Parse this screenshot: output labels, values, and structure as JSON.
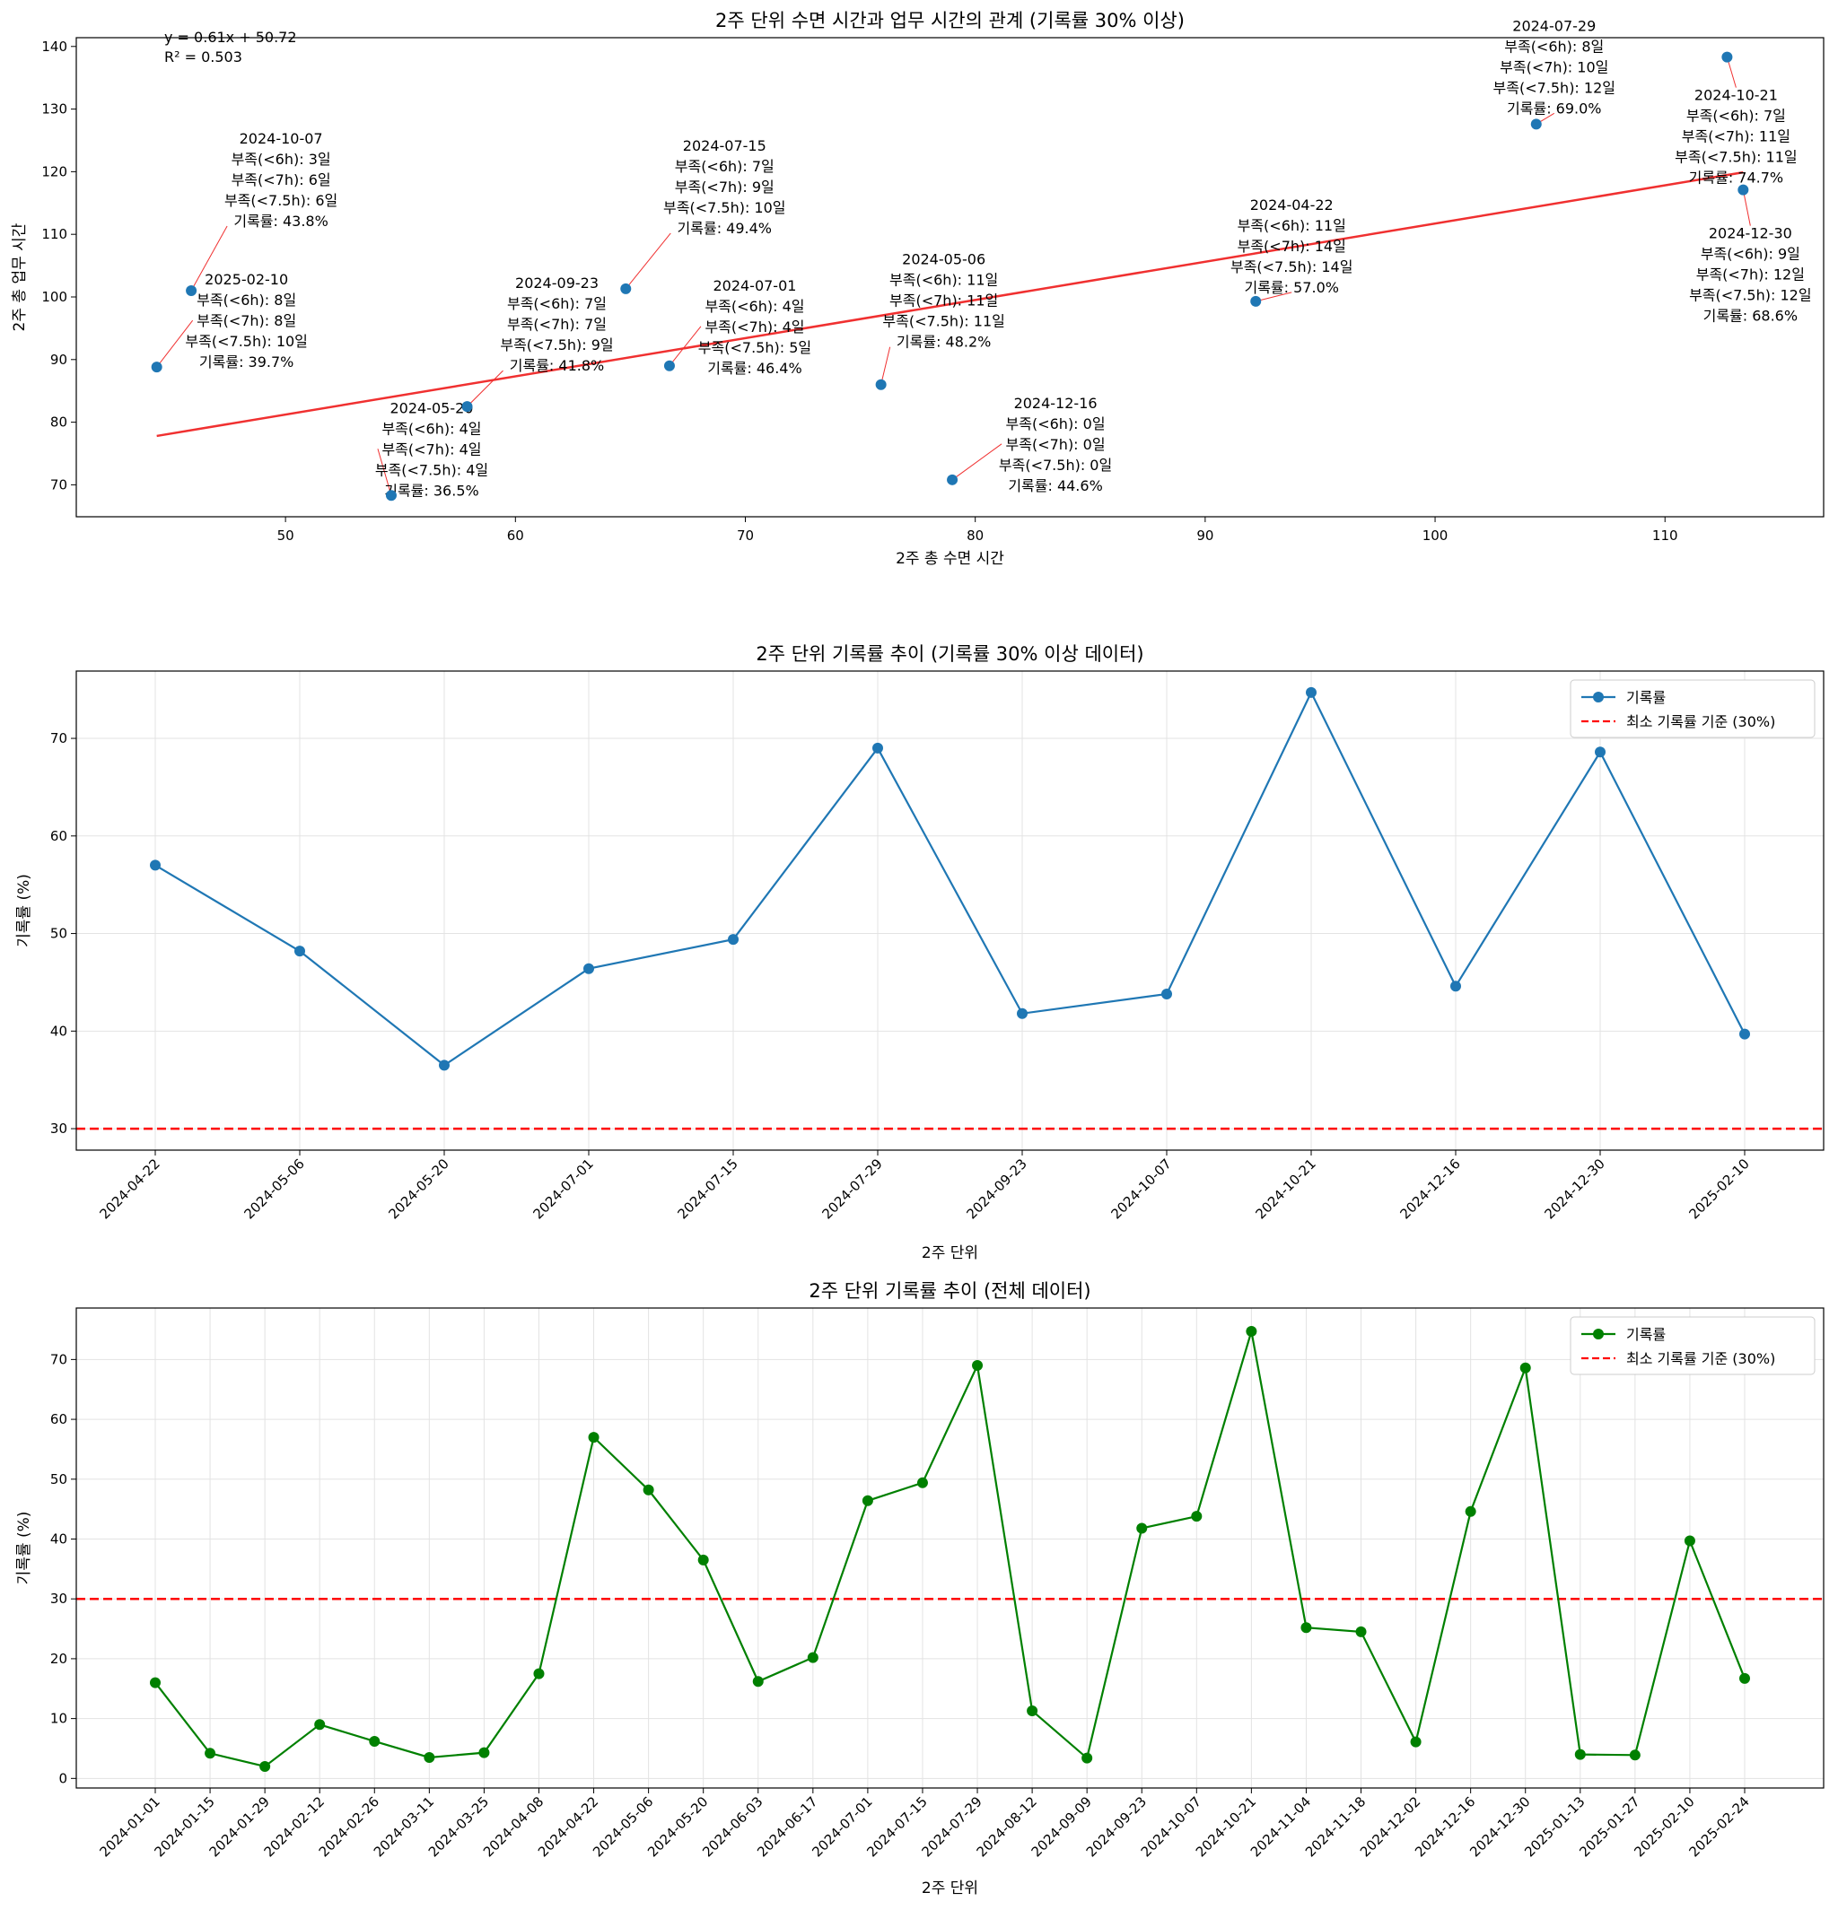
{
  "chart_data": [
    {
      "type": "scatter",
      "title": "2주 단위 수면 시간과 업무 시간의 관계 (기록률 30% 이상)",
      "xlabel": "2주 총 수면 시간",
      "ylabel": "2주 총 업무 시간",
      "xlim": [
        40.9,
        116.9
      ],
      "ylim": [
        64.9,
        141.4
      ],
      "xticks": [
        50,
        60,
        70,
        80,
        90,
        100,
        110
      ],
      "yticks": [
        70,
        80,
        90,
        100,
        110,
        120,
        130,
        140
      ],
      "regression": {
        "slope": 0.61,
        "intercept": 50.72,
        "equation": "y = 0.61x + 50.72",
        "r2": "R² = 0.503"
      },
      "points": [
        {
          "date": "2024-04-22",
          "x": 92.2,
          "y": 99.3,
          "lines": [
            "2024-04-22",
            "부족(<6h): 11일",
            "부족(<7h): 14일",
            "부족(<7.5h): 14일",
            "기록률: 57.0%"
          ]
        },
        {
          "date": "2024-05-06",
          "x": 75.9,
          "y": 86.0,
          "lines": [
            "2024-05-06",
            "부족(<6h): 11일",
            "부족(<7h): 11일",
            "부족(<7.5h): 11일",
            "기록률: 48.2%"
          ]
        },
        {
          "date": "2024-05-20",
          "x": 54.6,
          "y": 68.3,
          "lines": [
            "2024-05-20",
            "부족(<6h): 4일",
            "부족(<7h): 4일",
            "부족(<7.5h): 4일",
            "기록률: 36.5%"
          ]
        },
        {
          "date": "2024-07-01",
          "x": 66.7,
          "y": 89.0,
          "lines": [
            "2024-07-01",
            "부족(<6h): 4일",
            "부족(<7h): 4일",
            "부족(<7.5h): 5일",
            "기록률: 46.4%"
          ]
        },
        {
          "date": "2024-07-15",
          "x": 64.8,
          "y": 101.3,
          "lines": [
            "2024-07-15",
            "부족(<6h): 7일",
            "부족(<7h): 9일",
            "부족(<7.5h): 10일",
            "기록률: 49.4%"
          ]
        },
        {
          "date": "2024-07-29",
          "x": 104.4,
          "y": 127.6,
          "lines": [
            "2024-07-29",
            "부족(<6h): 8일",
            "부족(<7h): 10일",
            "부족(<7.5h): 12일",
            "기록률: 69.0%"
          ]
        },
        {
          "date": "2024-09-23",
          "x": 57.9,
          "y": 82.5,
          "lines": [
            "2024-09-23",
            "부족(<6h): 7일",
            "부족(<7h): 7일",
            "부족(<7.5h): 9일",
            "기록률: 41.8%"
          ]
        },
        {
          "date": "2024-10-07",
          "x": 45.9,
          "y": 101.0,
          "lines": [
            "2024-10-07",
            "부족(<6h): 3일",
            "부족(<7h): 6일",
            "부족(<7.5h): 6일",
            "기록률: 43.8%"
          ]
        },
        {
          "date": "2024-10-21",
          "x": 112.7,
          "y": 138.3,
          "lines": [
            "2024-10-21",
            "부족(<6h): 7일",
            "부족(<7h): 11일",
            "부족(<7.5h): 11일",
            "기록률: 74.7%"
          ]
        },
        {
          "date": "2024-12-16",
          "x": 79.0,
          "y": 70.8,
          "lines": [
            "2024-12-16",
            "부족(<6h): 0일",
            "부족(<7h): 0일",
            "부족(<7.5h): 0일",
            "기록률: 44.6%"
          ]
        },
        {
          "date": "2024-12-30",
          "x": 113.4,
          "y": 117.1,
          "lines": [
            "2024-12-30",
            "부족(<6h): 9일",
            "부족(<7h): 12일",
            "부족(<7.5h): 12일",
            "기록률: 68.6%"
          ]
        },
        {
          "date": "2025-02-10",
          "x": 44.4,
          "y": 88.8,
          "lines": [
            "2025-02-10",
            "부족(<6h): 8일",
            "부족(<7h): 8일",
            "부족(<7.5h): 10일",
            "기록률: 39.7%"
          ]
        }
      ]
    },
    {
      "type": "line",
      "title": "2주 단위 기록률 추이 (기록률 30% 이상 데이터)",
      "xlabel": "2주 단위",
      "ylabel": "기록률 (%)",
      "ylim": [
        27.8,
        76.9
      ],
      "yticks": [
        30,
        40,
        50,
        60,
        70
      ],
      "grid": true,
      "legend": "top-right",
      "categories": [
        "2024-04-22",
        "2024-05-06",
        "2024-05-20",
        "2024-07-01",
        "2024-07-15",
        "2024-07-29",
        "2024-09-23",
        "2024-10-07",
        "2024-10-21",
        "2024-12-16",
        "2024-12-30",
        "2025-02-10"
      ],
      "series": [
        {
          "name": "기록률",
          "color": "#1f77b4",
          "values": [
            57.0,
            48.2,
            36.5,
            46.4,
            49.4,
            69.0,
            41.8,
            43.8,
            74.7,
            44.6,
            68.6,
            39.7
          ]
        }
      ],
      "threshold": {
        "name": "최소 기록률 기준 (30%)",
        "value": 30,
        "color": "#ff0000"
      }
    },
    {
      "type": "line",
      "title": "2주 단위 기록률 추이 (전체 데이터)",
      "xlabel": "2주 단위",
      "ylabel": "기록률 (%)",
      "ylim": [
        -1.6,
        78.6
      ],
      "yticks": [
        0,
        10,
        20,
        30,
        40,
        50,
        60,
        70
      ],
      "grid": true,
      "legend": "top-right",
      "categories": [
        "2024-01-01",
        "2024-01-15",
        "2024-01-29",
        "2024-02-12",
        "2024-02-26",
        "2024-03-11",
        "2024-03-25",
        "2024-04-08",
        "2024-04-22",
        "2024-05-06",
        "2024-05-20",
        "2024-06-03",
        "2024-06-17",
        "2024-07-01",
        "2024-07-15",
        "2024-07-29",
        "2024-08-12",
        "2024-09-09",
        "2024-09-23",
        "2024-10-07",
        "2024-10-21",
        "2024-11-04",
        "2024-11-18",
        "2024-12-02",
        "2024-12-16",
        "2024-12-30",
        "2025-01-13",
        "2025-01-27",
        "2025-02-10",
        "2025-02-24"
      ],
      "series": [
        {
          "name": "기록률",
          "color": "#008000",
          "values": [
            16.0,
            4.2,
            2.0,
            9.0,
            6.2,
            3.5,
            4.3,
            17.5,
            57.0,
            48.2,
            36.5,
            16.2,
            20.2,
            46.4,
            49.4,
            69.0,
            11.3,
            3.4,
            41.8,
            43.8,
            74.7,
            25.2,
            24.5,
            6.1,
            44.6,
            68.6,
            4.0,
            3.9,
            39.7,
            16.7
          ]
        }
      ],
      "threshold": {
        "name": "최소 기록률 기준 (30%)",
        "value": 30,
        "color": "#ff0000"
      }
    }
  ]
}
